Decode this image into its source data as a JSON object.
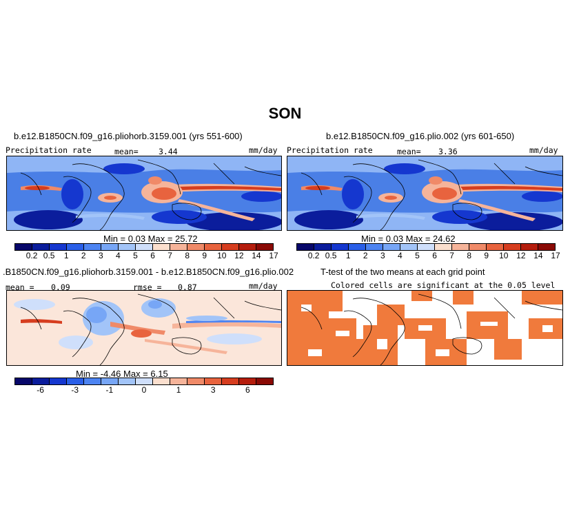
{
  "title": "SON",
  "panel1": {
    "title": "b.e12.B1850CN.f09_g16.pliohorb.3159.001 (yrs 551-600)",
    "left_label": "Precipitation rate",
    "mean_label": "mean=",
    "mean_value": "3.44",
    "units": "mm/day",
    "minmax": "Min =    0.03  Max =    25.72"
  },
  "panel2": {
    "title": "b.e12.B1850CN.f09_g16.plio.002 (yrs 601-650)",
    "left_label": "Precipitation rate",
    "mean_label": "mean=",
    "mean_value": "3.36",
    "units": "mm/day",
    "minmax": "Min =    0.03  Max =    24.62"
  },
  "panel3": {
    "title": ".B1850CN.f09_g16.pliohorb.3159.001 - b.e12.B1850CN.f09_g16.plio.002",
    "mean_label": "mean =",
    "mean_value": "0.09",
    "rmse_label": "rmse =",
    "rmse_value": "0.87",
    "units": "mm/day",
    "minmax": "Min =   -4.46  Max =    6.15"
  },
  "panel4": {
    "title": "T-test of the two means at each grid point",
    "subtitle": "Colored cells are significant at the 0.05 level"
  },
  "colorbar_precip": {
    "colors": [
      "#08086a",
      "#0b1d9c",
      "#1537cf",
      "#2a5fe8",
      "#4d84f2",
      "#77a6f6",
      "#a2c4f8",
      "#cfdffb",
      "#fbdfce",
      "#f6b49a",
      "#f08a68",
      "#e8633e",
      "#d63d1f",
      "#b51d0d",
      "#8a0a05"
    ],
    "labels": [
      "0.2",
      "0.5",
      "1",
      "2",
      "3",
      "4",
      "5",
      "6",
      "7",
      "8",
      "9",
      "10",
      "12",
      "14",
      "17"
    ]
  },
  "colorbar_diff": {
    "colors": [
      "#08086a",
      "#0b1d9c",
      "#1537cf",
      "#2a5fe8",
      "#4d84f2",
      "#77a6f6",
      "#a2c4f8",
      "#cfdffb",
      "#fbdfce",
      "#f6b49a",
      "#f08a68",
      "#e8633e",
      "#d63d1f",
      "#b51d0d",
      "#8a0a05"
    ],
    "labels": [
      "-6",
      "-3",
      "-1",
      "0",
      "1",
      "3",
      "6"
    ]
  },
  "colors": {
    "ttest_fill": "#f07a3c",
    "map_bg_precip": "#4a7fe6",
    "map_bg_diff": "#fbe6da"
  }
}
